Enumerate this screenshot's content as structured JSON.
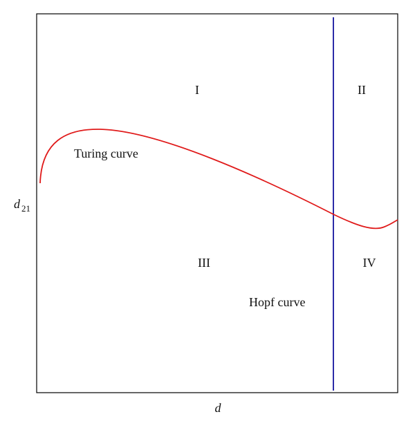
{
  "axes": {
    "x_label": "d",
    "y_label": "d",
    "y_label_subscript": "21"
  },
  "regions": [
    "I",
    "II",
    "III",
    "IV"
  ],
  "curves": {
    "turing": "Turing curve",
    "hopf": "Hopf curve"
  }
}
